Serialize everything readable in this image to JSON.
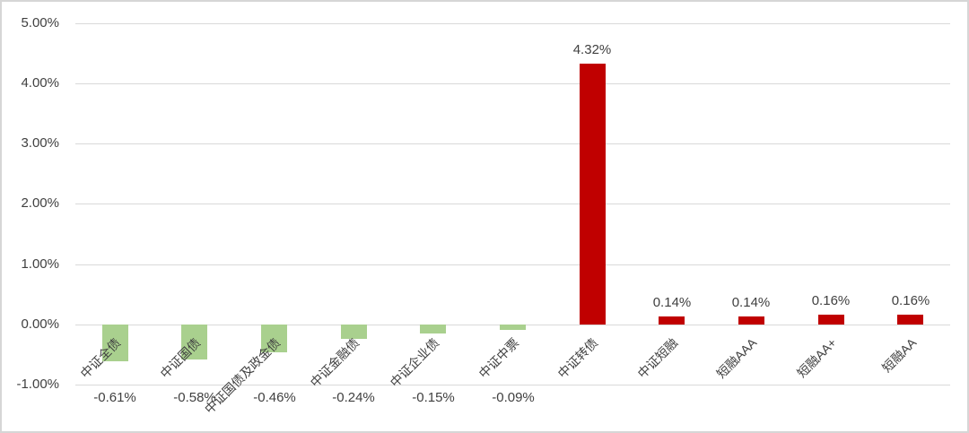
{
  "colors": {
    "positive_bar": "#C00000",
    "negative_bar": "#A9D08E",
    "gridline": "#D9D9D9",
    "text": "#404040",
    "frame_border": "#D6D6D6",
    "background": "#FFFFFF"
  },
  "y_axis": {
    "tick_labels": [
      "5.00%",
      "4.00%",
      "3.00%",
      "2.00%",
      "1.00%",
      "0.00%",
      "-1.00%"
    ],
    "max": 5,
    "min": -1,
    "step": 1
  },
  "chart_data": {
    "type": "bar",
    "title": "",
    "xlabel": "",
    "ylabel": "",
    "ylim": [
      -1,
      5
    ],
    "grid": true,
    "legend": false,
    "categories": [
      "中证全债",
      "中证国债",
      "中证国债及政金债",
      "中证金融债",
      "中证企业债",
      "中证中票",
      "中证转债",
      "中证短融",
      "短融AAA",
      "短融AA+",
      "短融AA"
    ],
    "values": [
      -0.61,
      -0.58,
      -0.46,
      -0.24,
      -0.15,
      -0.09,
      4.32,
      0.14,
      0.14,
      0.16,
      0.16
    ],
    "data_labels": [
      "-0.61%",
      "-0.58%",
      "-0.46%",
      "-0.24%",
      "-0.15%",
      "-0.09%",
      "4.32%",
      "0.14%",
      "0.14%",
      "0.16%",
      "0.16%"
    ],
    "series_color_rule": "negative values green, positive values red"
  }
}
